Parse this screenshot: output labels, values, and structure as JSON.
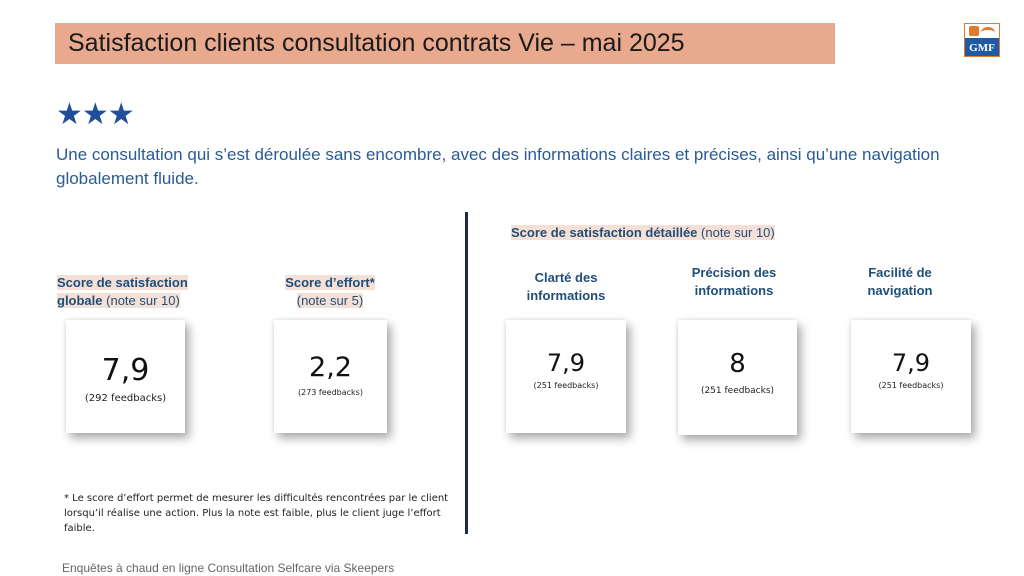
{
  "header": {
    "title": "Satisfaction clients consultation contrats Vie – mai 2025",
    "logo_text": "GMF"
  },
  "rating": {
    "stars": "★★★",
    "stars_count": 3,
    "star_color": "#1f4e9a"
  },
  "summary": "Une consultation qui s’est déroulée sans encombre, avec des informations claires et précises, ainsi qu’une navigation globalement fluide.",
  "global_score": {
    "label_bold_1": "Score de satisfaction",
    "label_bold_2": "globale",
    "label_note": "(note sur 10)",
    "value": "7,9",
    "feedbacks": "(292 feedbacks)"
  },
  "effort_score": {
    "label_bold": "Score d’effort*",
    "label_note": "(note sur 5)",
    "value": "2,2",
    "feedbacks": "(273 feedbacks)"
  },
  "detailed": {
    "heading_bold": "Score de satisfaction détaillée",
    "heading_note": "(note sur 10)",
    "items": [
      {
        "label_1": "Clarté des",
        "label_2": "informations",
        "value": "7,9",
        "feedbacks": "(251 feedbacks)"
      },
      {
        "label_1": "Précision des",
        "label_2": "informations",
        "value": "8",
        "feedbacks": "(251 feedbacks)"
      },
      {
        "label_1": "Facilité de",
        "label_2": "navigation",
        "value": "7,9",
        "feedbacks": "(251 feedbacks)"
      }
    ]
  },
  "footnote": {
    "line_1": "* Le score d’effort permet de mesurer les difficultés rencontrées par le client",
    "line_2": "lorsqu’il réalise une action. Plus la note est faible, plus le client juge l’effort faible."
  },
  "source": "Enquêtes à chaud en ligne Consultation Selfcare via Skeepers",
  "colors": {
    "title_bg": "#e8a98f",
    "label_highlight": "#f6e0d6",
    "text_blue": "#2a5b93",
    "divider": "#1a2a4f"
  }
}
